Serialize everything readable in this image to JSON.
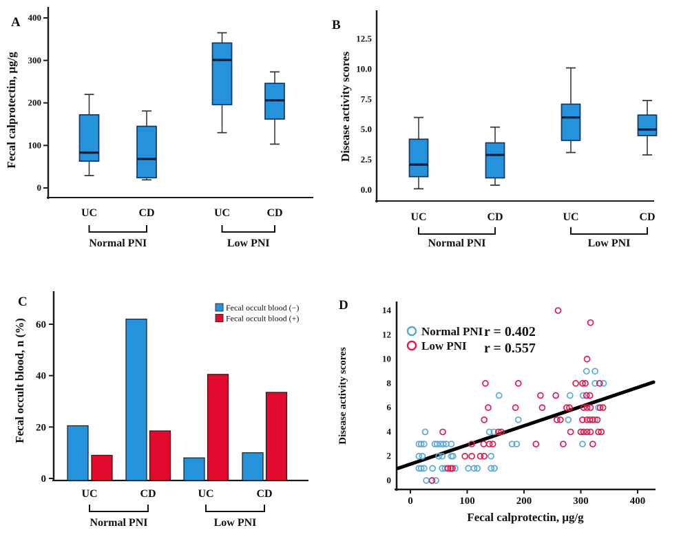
{
  "figure": {
    "background": "#ffffff",
    "panels": [
      {
        "letter": "A"
      },
      {
        "letter": "B"
      },
      {
        "letter": "C"
      },
      {
        "letter": "D"
      }
    ]
  },
  "chart_data": [
    {
      "id": "A",
      "type": "box",
      "ylabel": "Fecal calprotectin,  μg/g",
      "ylim": [
        0,
        420
      ],
      "yticks": [
        0,
        100,
        200,
        300,
        400
      ],
      "ytick_labels": [
        "0",
        "100",
        "200",
        "300",
        "400"
      ],
      "categories": [
        "UC",
        "CD",
        "UC",
        "CD"
      ],
      "group_labels": [
        "Normal PNI",
        "Low PNI"
      ],
      "boxes": [
        {
          "category": "UC",
          "group": "Normal PNI",
          "whisker_low": 29,
          "q1": 63,
          "median": 83,
          "q3": 172,
          "whisker_high": 220
        },
        {
          "category": "CD",
          "group": "Normal PNI",
          "whisker_low": 19,
          "q1": 24,
          "median": 68,
          "q3": 145,
          "whisker_high": 181
        },
        {
          "category": "UC",
          "group": "Low PNI",
          "whisker_low": 130,
          "q1": 196,
          "median": 301,
          "q3": 341,
          "whisker_high": 365
        },
        {
          "category": "CD",
          "group": "Low PNI",
          "whisker_low": 103,
          "q1": 162,
          "median": 206,
          "q3": 246,
          "whisker_high": 273
        }
      ],
      "colors": {
        "box_fill": "#2493DB",
        "box_stroke": "#15355F",
        "median": "#0B1F3A",
        "whisker": "#3A3A3A"
      }
    },
    {
      "id": "B",
      "type": "box",
      "ylabel": "Disease activity scores",
      "ylim": [
        0,
        13.5
      ],
      "yticks": [
        0,
        2.5,
        5,
        7.5,
        10,
        12.5
      ],
      "ytick_labels": [
        "0.0",
        "2.5",
        "5.0",
        "7.5",
        "10.0",
        "12.5"
      ],
      "categories": [
        "UC",
        "CD",
        "UC",
        "CD"
      ],
      "group_labels": [
        "Normal PNI",
        "Low PNI"
      ],
      "boxes": [
        {
          "category": "UC",
          "group": "Normal PNI",
          "whisker_low": 0.1,
          "q1": 1.1,
          "median": 2.1,
          "q3": 4.2,
          "whisker_high": 6.0
        },
        {
          "category": "CD",
          "group": "Normal PNI",
          "whisker_low": 0.4,
          "q1": 1.0,
          "median": 2.9,
          "q3": 3.9,
          "whisker_high": 5.2
        },
        {
          "category": "UC",
          "group": "Low PNI",
          "whisker_low": 3.1,
          "q1": 4.1,
          "median": 6.0,
          "q3": 7.1,
          "whisker_high": 10.1
        },
        {
          "category": "CD",
          "group": "Low PNI",
          "whisker_low": 2.9,
          "q1": 4.5,
          "median": 5.0,
          "q3": 6.2,
          "whisker_high": 7.4
        }
      ],
      "colors": {
        "box_fill": "#2493DB",
        "box_stroke": "#15355F",
        "median": "#0B1F3A",
        "whisker": "#3A3A3A"
      }
    },
    {
      "id": "C",
      "type": "bar",
      "ylabel": "Fecal occult blood, n (%)",
      "ylim": [
        0,
        73
      ],
      "yticks": [
        0,
        20,
        40,
        60
      ],
      "ytick_labels": [
        "0",
        "20",
        "40",
        "60"
      ],
      "categories": [
        "UC",
        "CD",
        "UC",
        "CD"
      ],
      "group_labels": [
        "Normal PNI",
        "Low PNI"
      ],
      "series": [
        {
          "name": "Fecal occult blood (−)",
          "color": "#2493DB",
          "values": [
            20.5,
            62,
            8,
            10
          ]
        },
        {
          "name": "Fecal occult blood (+)",
          "color": "#E3092D",
          "values": [
            9,
            18.5,
            40.5,
            33.5
          ]
        }
      ]
    },
    {
      "id": "D",
      "type": "scatter",
      "xlabel": "Fecal calprotectin,  μg/g",
      "ylabel": "Disease activity scores",
      "xlim": [
        -25,
        430
      ],
      "ylim": [
        -0.8,
        15
      ],
      "xticks": [
        0,
        100,
        200,
        300,
        400
      ],
      "xtick_labels": [
        "0",
        "100",
        "200",
        "300",
        "400"
      ],
      "yticks": [
        0,
        2,
        4,
        6,
        8,
        10,
        12,
        14
      ],
      "ytick_labels": [
        "0",
        "2",
        "4",
        "6",
        "8",
        "10",
        "12",
        "14"
      ],
      "legend": [
        {
          "label": "Normal PNI",
          "r_text": "r = 0.402",
          "color": "#5AA7DB"
        },
        {
          "label": "Low PNI",
          "r_text": "r = 0.557",
          "color": "#E01A4F"
        }
      ],
      "regression_line": {
        "x1": -22,
        "y1": 1.0,
        "x2": 428,
        "y2": 8.1,
        "color": "#000000"
      },
      "series": [
        {
          "name": "Normal PNI",
          "color": "#5AA7DB",
          "points": [
            [
              28,
              0
            ],
            [
              45,
              0
            ],
            [
              15,
              1
            ],
            [
              19,
              1
            ],
            [
              24,
              1
            ],
            [
              39,
              1
            ],
            [
              56,
              1
            ],
            [
              61,
              1
            ],
            [
              79,
              1
            ],
            [
              102,
              1
            ],
            [
              112,
              1
            ],
            [
              118,
              1
            ],
            [
              142,
              1
            ],
            [
              148,
              1
            ],
            [
              15,
              2
            ],
            [
              21,
              2
            ],
            [
              50,
              2
            ],
            [
              56,
              2
            ],
            [
              72,
              2
            ],
            [
              75,
              2
            ],
            [
              142,
              2
            ],
            [
              15,
              3
            ],
            [
              19,
              3
            ],
            [
              24,
              3
            ],
            [
              43,
              3
            ],
            [
              47,
              3
            ],
            [
              53,
              3
            ],
            [
              58,
              3
            ],
            [
              63,
              3
            ],
            [
              72,
              3
            ],
            [
              179,
              3
            ],
            [
              187,
              3
            ],
            [
              303,
              3
            ],
            [
              26,
              4
            ],
            [
              139,
              4
            ],
            [
              147,
              4
            ],
            [
              190,
              5
            ],
            [
              278,
              5
            ],
            [
              325,
              5
            ],
            [
              331,
              6
            ],
            [
              156,
              7
            ],
            [
              281,
              7
            ],
            [
              304,
              7
            ],
            [
              325,
              8
            ],
            [
              340,
              8
            ],
            [
              310,
              9
            ],
            [
              325,
              9
            ]
          ]
        },
        {
          "name": "Low PNI",
          "color": "#E01A4F",
          "points": [
            [
              38,
              0
            ],
            [
              66,
              1
            ],
            [
              71,
              1
            ],
            [
              74,
              1
            ],
            [
              96,
              2
            ],
            [
              108,
              2
            ],
            [
              123,
              2
            ],
            [
              130,
              2
            ],
            [
              108,
              3
            ],
            [
              129,
              3
            ],
            [
              139,
              3
            ],
            [
              145,
              3
            ],
            [
              221,
              3
            ],
            [
              269,
              3
            ],
            [
              321,
              3
            ],
            [
              57,
              4
            ],
            [
              155,
              4
            ],
            [
              160,
              4
            ],
            [
              282,
              4
            ],
            [
              300,
              4
            ],
            [
              305,
              4
            ],
            [
              311,
              4
            ],
            [
              317,
              4
            ],
            [
              331,
              4
            ],
            [
              336,
              4
            ],
            [
              130,
              5
            ],
            [
              258,
              5
            ],
            [
              264,
              5
            ],
            [
              303,
              5
            ],
            [
              311,
              5
            ],
            [
              316,
              5
            ],
            [
              321,
              5
            ],
            [
              329,
              5
            ],
            [
              137,
              6
            ],
            [
              185,
              6
            ],
            [
              232,
              6
            ],
            [
              275,
              6
            ],
            [
              280,
              6
            ],
            [
              305,
              6
            ],
            [
              311,
              6
            ],
            [
              317,
              6
            ],
            [
              334,
              6
            ],
            [
              339,
              6
            ],
            [
              229,
              7
            ],
            [
              256,
              7
            ],
            [
              310,
              7
            ],
            [
              316,
              7
            ],
            [
              132,
              8
            ],
            [
              190,
              8
            ],
            [
              291,
              8
            ],
            [
              303,
              8
            ],
            [
              308,
              8
            ],
            [
              333,
              8
            ],
            [
              311,
              10
            ],
            [
              317,
              13
            ],
            [
              260,
              14
            ]
          ]
        }
      ]
    }
  ]
}
